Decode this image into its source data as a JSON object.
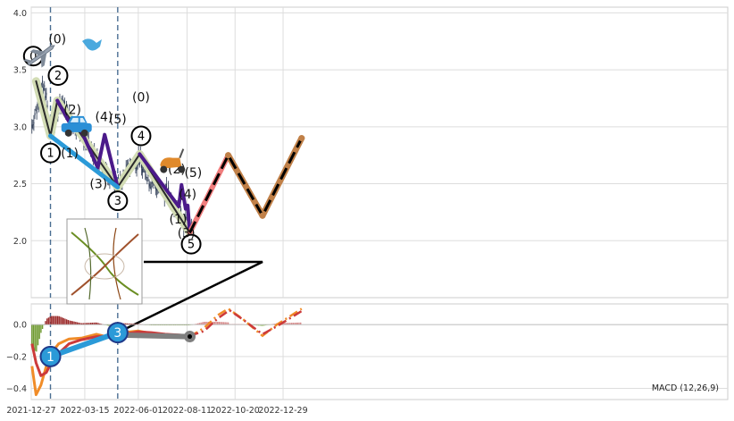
{
  "chart_data": [
    {
      "type": "candlestick",
      "panel": "price",
      "x_start": "2021-12-27",
      "x_end": "2023-01-31",
      "ylim": [
        1.5,
        4.05
      ],
      "yticks": [
        2.0,
        2.5,
        3.0,
        3.5,
        4.0
      ],
      "ytick_labels": [
        "2.0",
        "2.5",
        "3.0",
        "3.5",
        "4.0"
      ],
      "grid": true,
      "vlines": [
        "2022-01-24",
        "2022-05-02"
      ],
      "candle_envelope": [
        [
          "2021-12-28",
          3.02
        ],
        [
          "2022-01-03",
          3.15
        ],
        [
          "2022-01-08",
          3.28
        ],
        [
          "2022-01-12",
          3.35
        ],
        [
          "2022-01-17",
          3.32
        ],
        [
          "2022-01-21",
          3.05
        ],
        [
          "2022-01-25",
          2.95
        ],
        [
          "2022-01-30",
          3.02
        ],
        [
          "2022-02-05",
          3.18
        ],
        [
          "2022-02-10",
          3.22
        ],
        [
          "2022-02-20",
          3.1
        ],
        [
          "2022-03-01",
          3.02
        ],
        [
          "2022-03-10",
          2.95
        ],
        [
          "2022-03-20",
          2.82
        ],
        [
          "2022-04-01",
          2.72
        ],
        [
          "2022-04-10",
          2.65
        ],
        [
          "2022-04-20",
          2.58
        ],
        [
          "2022-05-01",
          2.48
        ],
        [
          "2022-05-08",
          2.52
        ],
        [
          "2022-05-15",
          2.62
        ],
        [
          "2022-05-25",
          2.68
        ],
        [
          "2022-06-01",
          2.72
        ],
        [
          "2022-06-10",
          2.62
        ],
        [
          "2022-06-20",
          2.52
        ],
        [
          "2022-07-01",
          2.46
        ],
        [
          "2022-07-10",
          2.42
        ],
        [
          "2022-07-20",
          2.36
        ],
        [
          "2022-07-28",
          2.3
        ],
        [
          "2022-08-05",
          2.18
        ],
        [
          "2022-08-12",
          2.12
        ],
        [
          "2022-08-20",
          2.12
        ]
      ],
      "polylines": [
        {
          "color": "#d2dcb4",
          "width": 9,
          "points": [
            [
              "2022-01-03",
              3.4
            ],
            [
              "2022-01-24",
              2.92
            ],
            [
              "2022-02-03",
              3.23
            ],
            [
              "2022-05-02",
              2.47
            ],
            [
              "2022-06-03",
              2.76
            ],
            [
              "2022-08-15",
              2.07
            ]
          ]
        },
        {
          "color": "#2a2a2a",
          "width": 2,
          "points": [
            [
              "2022-01-03",
              3.4
            ],
            [
              "2022-01-24",
              2.92
            ],
            [
              "2022-02-03",
              3.23
            ],
            [
              "2022-05-02",
              2.47
            ],
            [
              "2022-06-03",
              2.76
            ],
            [
              "2022-08-15",
              2.07
            ]
          ]
        },
        {
          "color": "#4b1a8a",
          "width": 4,
          "points": [
            [
              "2022-02-03",
              3.23
            ],
            [
              "2022-02-26",
              2.98
            ],
            [
              "2022-03-03",
              3.06
            ],
            [
              "2022-04-03",
              2.64
            ],
            [
              "2022-04-13",
              2.93
            ],
            [
              "2022-05-02",
              2.47
            ]
          ]
        },
        {
          "color": "#4b1a8a",
          "width": 4,
          "points": [
            [
              "2022-06-03",
              2.76
            ],
            [
              "2022-07-30",
              2.3
            ],
            [
              "2022-08-03",
              2.49
            ],
            [
              "2022-08-09",
              2.28
            ],
            [
              "2022-08-12",
              2.31
            ],
            [
              "2022-08-15",
              2.07
            ]
          ]
        },
        {
          "color": "#2b9ad8",
          "width": 5,
          "points": [
            [
              "2022-01-24",
              2.92
            ],
            [
              "2022-05-02",
              2.47
            ]
          ]
        },
        {
          "color": "#f07d7d",
          "width": 6,
          "points": [
            [
              "2022-08-15",
              2.07
            ],
            [
              "2022-10-10",
              2.75
            ]
          ]
        },
        {
          "color": "#c08048",
          "width": 7,
          "points": [
            [
              "2022-10-10",
              2.75
            ],
            [
              "2022-11-29",
              2.22
            ],
            [
              "2023-01-25",
              2.9
            ]
          ]
        },
        {
          "color": "#000000",
          "width": 3,
          "dashed": true,
          "points": [
            [
              "2022-08-15",
              2.07
            ],
            [
              "2022-10-10",
              2.75
            ],
            [
              "2022-11-29",
              2.22
            ],
            [
              "2023-01-25",
              2.9
            ]
          ]
        }
      ],
      "wave_labels": [
        {
          "text": "0",
          "circled": true,
          "x": "2021-12-30",
          "y": 3.62
        },
        {
          "text": "1",
          "circled": true,
          "x": "2022-01-24",
          "y": 2.77
        },
        {
          "text": "2",
          "circled": true,
          "x": "2022-02-04",
          "y": 3.45
        },
        {
          "text": "3",
          "circled": true,
          "x": "2022-05-02",
          "y": 2.35
        },
        {
          "text": "4",
          "circled": true,
          "x": "2022-06-05",
          "y": 2.92
        },
        {
          "text": "5",
          "circled": true,
          "x": "2022-08-17",
          "y": 1.97
        },
        {
          "text": "(0)",
          "circled": false,
          "x": "2022-02-03",
          "y": 3.77
        },
        {
          "text": "(2)",
          "circled": false,
          "x": "2022-02-25",
          "y": 3.15
        },
        {
          "text": "(1)",
          "circled": false,
          "x": "2022-02-21",
          "y": 2.77
        },
        {
          "text": "(4)",
          "circled": false,
          "x": "2022-04-12",
          "y": 3.09
        },
        {
          "text": "(3)",
          "circled": false,
          "x": "2022-04-04",
          "y": 2.5
        },
        {
          "text": "(5)",
          "circled": false,
          "x": "2022-05-02",
          "y": 3.07
        },
        {
          "text": "(0)",
          "circled": false,
          "x": "2022-06-05",
          "y": 3.26
        },
        {
          "text": "(2)",
          "circled": false,
          "x": "2022-07-27",
          "y": 2.63
        },
        {
          "text": "(5)",
          "circled": false,
          "x": "2022-08-20",
          "y": 2.6
        },
        {
          "text": "(4)",
          "circled": false,
          "x": "2022-08-12",
          "y": 2.41
        },
        {
          "text": "(1)",
          "circled": false,
          "x": "2022-07-29",
          "y": 2.19
        },
        {
          "text": "(3)",
          "circled": false,
          "x": "2022-08-10",
          "y": 2.07
        }
      ],
      "stickers": [
        "airplane",
        "car",
        "scooter",
        "thumbnail-chart"
      ]
    },
    {
      "type": "macd",
      "panel": "indicator",
      "label": "MACD (12,26,9)",
      "x_start": "2021-12-27",
      "x_end": "2023-01-31",
      "ylim": [
        -0.47,
        0.13
      ],
      "yticks": [
        0.0,
        -0.2,
        -0.4
      ],
      "ytick_labels": [
        "0.0",
        "−0.2",
        "−0.4"
      ],
      "xticks": [
        "2021-12-27",
        "2022-03-15",
        "2022-06-01",
        "2022-08-11",
        "2022-10-20",
        "2022-12-29"
      ],
      "xtick_labels": [
        "2021-12-27",
        "2022-03-15",
        "2022-06-01",
        "2022-08-11",
        "2022-10-20",
        "2022-12-29"
      ],
      "grid": true,
      "vlines": [
        "2022-01-24",
        "2022-05-02"
      ],
      "macd_line": [
        [
          "2021-12-28",
          -0.26
        ],
        [
          "2022-01-03",
          -0.44
        ],
        [
          "2022-01-10",
          -0.38
        ],
        [
          "2022-01-18",
          -0.26
        ],
        [
          "2022-01-25",
          -0.18
        ],
        [
          "2022-02-05",
          -0.12
        ],
        [
          "2022-02-20",
          -0.09
        ],
        [
          "2022-03-10",
          -0.085
        ],
        [
          "2022-04-01",
          -0.06
        ],
        [
          "2022-04-20",
          -0.08
        ],
        [
          "2022-05-10",
          -0.05
        ],
        [
          "2022-06-01",
          -0.04
        ],
        [
          "2022-06-20",
          -0.055
        ],
        [
          "2022-07-10",
          -0.065
        ],
        [
          "2022-07-30",
          -0.07
        ],
        [
          "2022-08-15",
          -0.075
        ]
      ],
      "signal_line": [
        [
          "2021-12-28",
          -0.12
        ],
        [
          "2022-01-03",
          -0.24
        ],
        [
          "2022-01-10",
          -0.32
        ],
        [
          "2022-01-18",
          -0.3
        ],
        [
          "2022-01-25",
          -0.24
        ],
        [
          "2022-02-05",
          -0.18
        ],
        [
          "2022-02-20",
          -0.12
        ],
        [
          "2022-03-10",
          -0.095
        ],
        [
          "2022-04-01",
          -0.075
        ],
        [
          "2022-04-20",
          -0.07
        ],
        [
          "2022-05-10",
          -0.06
        ],
        [
          "2022-06-01",
          -0.045
        ],
        [
          "2022-06-20",
          -0.05
        ],
        [
          "2022-07-10",
          -0.06
        ],
        [
          "2022-07-30",
          -0.065
        ],
        [
          "2022-08-15",
          -0.07
        ]
      ],
      "forecast_macd": [
        [
          "2022-08-15",
          -0.075
        ],
        [
          "2022-09-05",
          -0.02
        ],
        [
          "2022-09-25",
          0.06
        ],
        [
          "2022-10-10",
          0.1
        ],
        [
          "2022-10-30",
          0.04
        ],
        [
          "2022-11-29",
          -0.07
        ],
        [
          "2022-12-20",
          0.0
        ],
        [
          "2023-01-25",
          0.1
        ]
      ],
      "forecast_signal": [
        [
          "2022-08-15",
          -0.07
        ],
        [
          "2022-09-05",
          -0.04
        ],
        [
          "2022-09-25",
          0.04
        ],
        [
          "2022-10-12",
          0.09
        ],
        [
          "2022-11-01",
          0.03
        ],
        [
          "2022-11-29",
          -0.06
        ],
        [
          "2022-12-20",
          -0.01
        ],
        [
          "2023-01-25",
          0.085
        ]
      ],
      "overlay_lines": [
        {
          "color": "#2b9ad8",
          "width": 6,
          "points": [
            [
              "2022-01-24",
              -0.2
            ],
            [
              "2022-05-02",
              -0.05
            ]
          ]
        },
        {
          "color": "#7f7f7f",
          "width": 6,
          "points": [
            [
              "2022-05-02",
              -0.065
            ],
            [
              "2022-08-15",
              -0.075
            ]
          ]
        }
      ],
      "markers": [
        {
          "text": "1",
          "x": "2022-01-24",
          "y": -0.2,
          "color": "#2b9ad8"
        },
        {
          "text": "3",
          "x": "2022-05-02",
          "y": -0.05,
          "color": "#2b9ad8"
        },
        {
          "text": "",
          "x": "2022-08-15",
          "y": -0.075,
          "color": "#7f7f7f"
        }
      ]
    }
  ]
}
